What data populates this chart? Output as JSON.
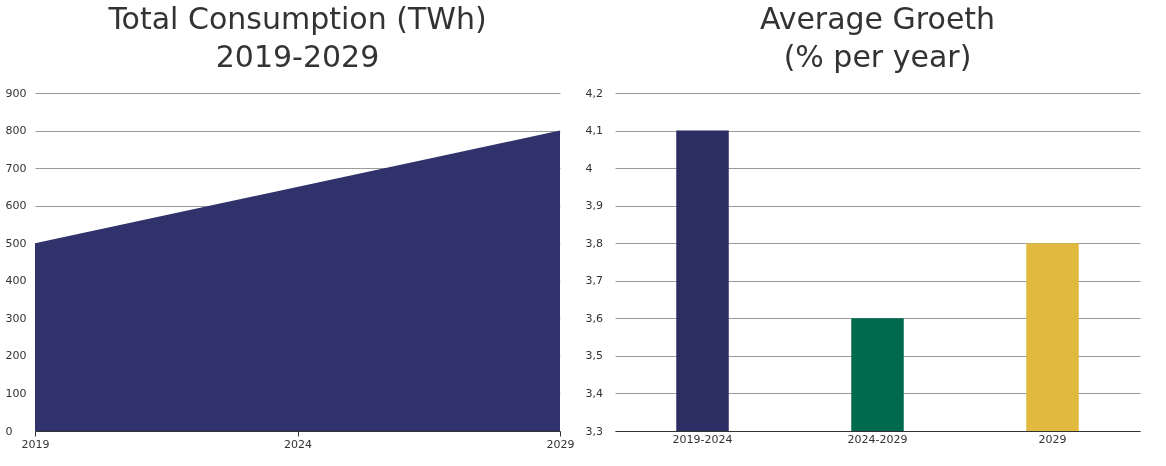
{
  "chart_data": [
    {
      "type": "area",
      "title": "Total Consumption (TWh)\n2019-2029",
      "x": [
        2019,
        2029
      ],
      "xlim": [
        2019,
        2029
      ],
      "xticks": [
        2019,
        2024,
        2029
      ],
      "ylim": [
        0,
        900
      ],
      "yticks": [
        0,
        100,
        200,
        300,
        400,
        500,
        600,
        700,
        800,
        900
      ],
      "grid": "y",
      "series": [
        {
          "color": "#30336b",
          "values": [
            500,
            800
          ]
        }
      ]
    },
    {
      "type": "bar",
      "title": "Average Groeth\n(% per year)",
      "categories": [
        "2019-2024",
        "2024-2029",
        "2029"
      ],
      "values": [
        4.1,
        3.6,
        3.8
      ],
      "colors": [
        "#2b2d63",
        "#006a4e",
        "#e0b93e"
      ],
      "ylim": [
        3.3,
        4.2
      ],
      "yticks": [
        {
          "value": 3.3,
          "label": "3,3"
        },
        {
          "value": 3.4,
          "label": "3,4"
        },
        {
          "value": 3.5,
          "label": "3,5"
        },
        {
          "value": 3.6,
          "label": "3,6"
        },
        {
          "value": 3.7,
          "label": "3,7"
        },
        {
          "value": 3.8,
          "label": "3,8"
        },
        {
          "value": 3.9,
          "label": "3,9"
        },
        4,
        {
          "value": 4.1,
          "label": "4,1"
        },
        {
          "value": 4.2,
          "label": "4,2"
        }
      ],
      "grid": "y"
    }
  ]
}
